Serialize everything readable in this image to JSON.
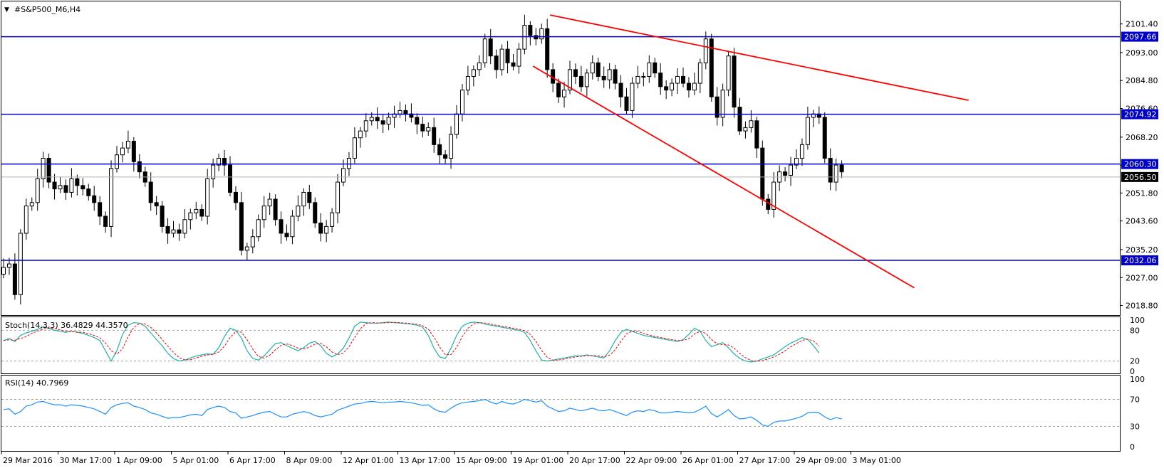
{
  "symbol_title": "#S&P500_M6,H4",
  "chart_data": [
    {
      "type": "candlestick",
      "title": "#S&P500_M6,H4",
      "ylim": [
        2016.0,
        2108.0
      ],
      "y_ticks": [
        "2101.40",
        "2093.00",
        "2084.80",
        "2076.60",
        "2068.20",
        "2060.00",
        "2051.80",
        "2043.60",
        "2035.20",
        "2027.00",
        "2018.80"
      ],
      "x_ticks": [
        "29 Mar 2016",
        "30 Mar 17:00",
        "1 Apr 09:00",
        "5 Apr 01:00",
        "6 Apr 17:00",
        "8 Apr 09:00",
        "12 Apr 01:00",
        "13 Apr 17:00",
        "15 Apr 09:00",
        "19 Apr 01:00",
        "20 Apr 17:00",
        "22 Apr 09:00",
        "26 Apr 01:00",
        "27 Apr 17:00",
        "29 Apr 09:00",
        "3 May 01:00"
      ],
      "close": [
        2030,
        2031,
        2022,
        2040,
        2048,
        2049,
        2056,
        2062,
        2055,
        2053,
        2054,
        2052,
        2056,
        2054,
        2053,
        2051,
        2049,
        2045,
        2042,
        2059,
        2063,
        2065,
        2067,
        2061,
        2058,
        2055,
        2049,
        2048,
        2042,
        2040,
        2041,
        2040,
        2044,
        2046,
        2047,
        2045,
        2056,
        2060,
        2062,
        2060,
        2052,
        2049,
        2035,
        2036,
        2039,
        2044,
        2048,
        2050,
        2044,
        2040,
        2039,
        2045,
        2048,
        2052,
        2049,
        2043,
        2040,
        2042,
        2046,
        2055,
        2059,
        2062,
        2068,
        2070,
        2073,
        2074,
        2073,
        2072,
        2074,
        2075,
        2076,
        2075,
        2074,
        2072,
        2070,
        2071,
        2066,
        2063,
        2062,
        2069,
        2075,
        2082,
        2086,
        2088,
        2090,
        2097,
        2092,
        2088,
        2094,
        2090,
        2089,
        2094,
        2101,
        2098,
        2097,
        2100,
        2088,
        2084,
        2080,
        2082,
        2088,
        2086,
        2083,
        2087,
        2090,
        2086,
        2085,
        2088,
        2084,
        2080,
        2076,
        2084,
        2086,
        2086,
        2090,
        2087,
        2083,
        2082,
        2084,
        2086,
        2084,
        2082,
        2084,
        2090,
        2097,
        2080,
        2074,
        2082,
        2092,
        2077,
        2070,
        2071,
        2073,
        2065,
        2050,
        2047,
        2055,
        2058,
        2057,
        2060,
        2062,
        2066,
        2074,
        2075,
        2074,
        2062,
        2055,
        2060,
        2058
      ],
      "horizontal_levels": [
        "2097.66",
        "2074.92",
        "2060.30",
        "2032.06"
      ],
      "current_price": "2056.50",
      "trendlines": [
        {
          "from": [
            "20 Apr 17:00",
            2104.0
          ],
          "to": [
            "4 May 21:00",
            2079.0
          ]
        },
        {
          "from": [
            "20 Apr 09:00",
            2089.0
          ],
          "to": [
            "4 May 17:00",
            2024.0
          ]
        }
      ],
      "indicators": [
        {
          "name": "Stoch(14,3,3)",
          "label": "Stoch(14,3,3) 36.4829 44.3570",
          "main_value": "36.4829",
          "signal_value": "44.3570",
          "levels": [
            "100",
            "80",
            "20",
            "0"
          ],
          "main": [
            60,
            64,
            58,
            70,
            75,
            78,
            82,
            87,
            84,
            80,
            78,
            76,
            78,
            76,
            74,
            70,
            66,
            60,
            40,
            20,
            40,
            72,
            90,
            95,
            94,
            88,
            75,
            62,
            50,
            35,
            25,
            20,
            22,
            26,
            30,
            32,
            34,
            33,
            46,
            68,
            84,
            80,
            65,
            40,
            25,
            22,
            30,
            42,
            54,
            56,
            50,
            45,
            40,
            46,
            55,
            58,
            50,
            35,
            28,
            34,
            45,
            65,
            88,
            96,
            95,
            94,
            94,
            95,
            96,
            95,
            94,
            93,
            92,
            90,
            86,
            70,
            45,
            28,
            25,
            45,
            70,
            88,
            94,
            96,
            95,
            92,
            90,
            88,
            86,
            84,
            82,
            80,
            76,
            60,
            40,
            22,
            20,
            22,
            24,
            26,
            28,
            30,
            30,
            32,
            30,
            28,
            26,
            40,
            60,
            76,
            82,
            78,
            74,
            70,
            68,
            66,
            64,
            62,
            60,
            58,
            62,
            72,
            84,
            78,
            60,
            48,
            52,
            56,
            46,
            34,
            25,
            20,
            18,
            20,
            24,
            28,
            32,
            40,
            48,
            55,
            60,
            66,
            62,
            50,
            36
          ]
        },
        {
          "name": "RSI(14)",
          "label": "RSI(14) 40.7969",
          "value": "40.7969",
          "levels": [
            "100",
            "70",
            "30",
            "0"
          ],
          "values": [
            55,
            56,
            48,
            52,
            60,
            62,
            66,
            67,
            64,
            62,
            62,
            60,
            62,
            61,
            60,
            58,
            56,
            52,
            48,
            58,
            62,
            64,
            65,
            60,
            58,
            55,
            50,
            48,
            45,
            42,
            43,
            43,
            45,
            47,
            48,
            46,
            55,
            58,
            60,
            58,
            52,
            50,
            42,
            44,
            46,
            49,
            51,
            52,
            48,
            44,
            44,
            48,
            50,
            52,
            50,
            46,
            44,
            46,
            48,
            54,
            57,
            60,
            63,
            64,
            66,
            67,
            66,
            65,
            66,
            66,
            67,
            66,
            65,
            63,
            61,
            62,
            56,
            52,
            51,
            57,
            62,
            65,
            66,
            67,
            68,
            70,
            66,
            63,
            67,
            64,
            63,
            66,
            70,
            68,
            66,
            68,
            60,
            56,
            52,
            53,
            57,
            55,
            53,
            55,
            57,
            54,
            53,
            55,
            52,
            49,
            46,
            51,
            53,
            52,
            55,
            53,
            50,
            50,
            51,
            52,
            51,
            50,
            51,
            55,
            60,
            49,
            44,
            49,
            55,
            46,
            41,
            42,
            44,
            39,
            32,
            30,
            36,
            38,
            38,
            40,
            42,
            45,
            50,
            51,
            50,
            44,
            40,
            43,
            41
          ]
        }
      ]
    }
  ],
  "colors": {
    "level_line": "#0000cc",
    "trendline": "#ff0000",
    "candle_body_down": "#000000",
    "candle_body_up": "#ffffff",
    "stoch_main": "#20b2aa",
    "stoch_signal": "#ff0000",
    "rsi": "#1e90ff",
    "current_price_bg": "#000000"
  }
}
